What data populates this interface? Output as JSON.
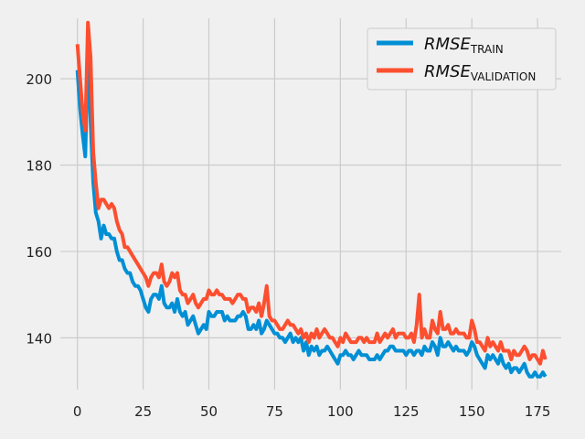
{
  "chart_data": {
    "type": "line",
    "title": "",
    "xlabel": "",
    "ylabel": "",
    "xlim": [
      -6.5,
      184
    ],
    "ylim": [
      128,
      214
    ],
    "grid": true,
    "legend_position": "top-right",
    "xticks": [
      0,
      25,
      50,
      75,
      100,
      125,
      150,
      175
    ],
    "yticks": [
      140,
      160,
      180,
      200
    ],
    "series": [
      {
        "name": "RMSE_TRAIN",
        "label_main": "RMSE",
        "label_sub": "TRAIN",
        "color": "#008fd5",
        "values": [
          202,
          193,
          187,
          182,
          207,
          190,
          176,
          169,
          167,
          163,
          166,
          164,
          164,
          163,
          163,
          160,
          158,
          158,
          156,
          155,
          155,
          153,
          152,
          152,
          151,
          149,
          147,
          146,
          149,
          150,
          150,
          149,
          152,
          148,
          147,
          147,
          148,
          146,
          149,
          146,
          145,
          146,
          143,
          144,
          145,
          143,
          141,
          142,
          143,
          142,
          146,
          145,
          145,
          146,
          146,
          146,
          144,
          145,
          144,
          144,
          144,
          145,
          145,
          146,
          145,
          142,
          142,
          143,
          142,
          144,
          141,
          142,
          144,
          143,
          142,
          141,
          141,
          140,
          140,
          139,
          140,
          141,
          139,
          140,
          139,
          140,
          137,
          139,
          136,
          138,
          137,
          138,
          136,
          137,
          137,
          138,
          137,
          136,
          135,
          134,
          136,
          136,
          137,
          136,
          136,
          135,
          136,
          137,
          136,
          136,
          136,
          135,
          135,
          135,
          136,
          135,
          136,
          137,
          137,
          138,
          138,
          137,
          137,
          137,
          137,
          136,
          137,
          137,
          136,
          137,
          137,
          136,
          138,
          137,
          137,
          139,
          138,
          136,
          140,
          138,
          138,
          139,
          138,
          137,
          138,
          137,
          137,
          137,
          136,
          137,
          139,
          138,
          136,
          135,
          134,
          133,
          136,
          135,
          136,
          135,
          134,
          136,
          134,
          133,
          134,
          132,
          133,
          133,
          132,
          133,
          134,
          132,
          131,
          131,
          132,
          131,
          131,
          132,
          131
        ]
      },
      {
        "name": "RMSE_VALIDATION",
        "label_main": "RMSE",
        "label_sub": "VALIDATION",
        "color": "#fc4f30",
        "values": [
          208,
          200,
          192,
          188,
          213,
          205,
          183,
          176,
          170,
          172,
          172,
          171,
          170,
          171,
          170,
          167,
          165,
          164,
          161,
          161,
          160,
          159,
          158,
          157,
          156,
          155,
          154,
          152,
          154,
          155,
          155,
          154,
          157,
          153,
          152,
          153,
          155,
          154,
          155,
          151,
          150,
          150,
          148,
          149,
          150,
          148,
          147,
          148,
          149,
          149,
          151,
          150,
          150,
          151,
          150,
          150,
          149,
          149,
          149,
          148,
          149,
          150,
          150,
          149,
          149,
          146,
          147,
          147,
          146,
          148,
          145,
          148,
          152,
          145,
          144,
          144,
          143,
          142,
          142,
          143,
          144,
          143,
          143,
          142,
          141,
          142,
          140,
          141,
          139,
          141,
          140,
          142,
          140,
          141,
          142,
          141,
          140,
          140,
          139,
          138,
          140,
          139,
          141,
          140,
          139,
          139,
          139,
          140,
          140,
          139,
          140,
          139,
          139,
          139,
          141,
          139,
          140,
          141,
          140,
          141,
          142,
          140,
          141,
          141,
          141,
          140,
          140,
          141,
          139,
          143,
          150,
          140,
          142,
          140,
          140,
          144,
          142,
          141,
          146,
          142,
          142,
          143,
          141,
          141,
          142,
          141,
          141,
          141,
          140,
          140,
          144,
          142,
          139,
          139,
          138,
          137,
          140,
          138,
          139,
          138,
          137,
          139,
          137,
          137,
          137,
          135,
          137,
          136,
          136,
          137,
          138,
          137,
          135,
          136,
          136,
          135,
          134,
          137,
          135
        ]
      }
    ]
  }
}
